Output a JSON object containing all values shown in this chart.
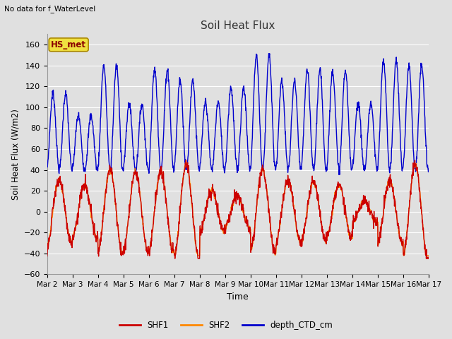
{
  "title": "Soil Heat Flux",
  "subtitle": "No data for f_WaterLevel",
  "xlabel": "Time",
  "ylabel": "Soil Heat Flux (W/m2)",
  "ylim": [
    -60,
    170
  ],
  "yticks": [
    -60,
    -40,
    -20,
    0,
    20,
    40,
    60,
    80,
    100,
    120,
    140,
    160
  ],
  "xtick_labels": [
    "Mar 2",
    "Mar 3",
    "Mar 4",
    "Mar 5",
    "Mar 6",
    "Mar 7",
    "Mar 8",
    "Mar 9",
    "Mar 10",
    "Mar 11",
    "Mar 12",
    "Mar 13",
    "Mar 14",
    "Mar 15",
    "Mar 16",
    "Mar 17"
  ],
  "legend_label": "HS_met",
  "series_labels": [
    "SHF1",
    "SHF2",
    "depth_CTD_cm"
  ],
  "series_colors": [
    "#cc0000",
    "#ff8800",
    "#0000cc"
  ],
  "background_color": "#e0e0e0",
  "plot_bg_color": "#e0e0e0",
  "grid_color": "#ffffff",
  "n_days": 15,
  "points_per_day": 96
}
